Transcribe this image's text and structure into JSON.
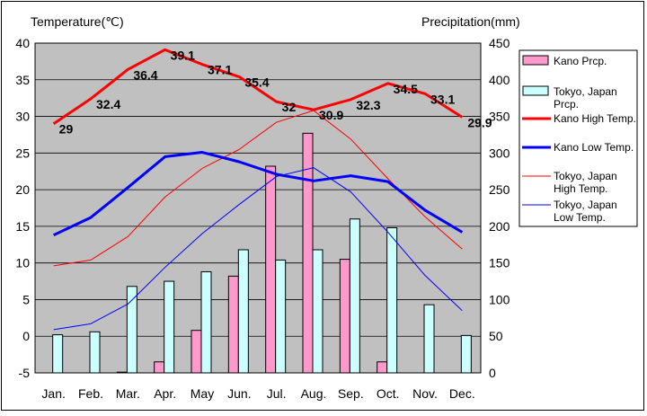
{
  "chart_data": {
    "type": "bar",
    "left_axis_title": "Temperature(℃)",
    "right_axis_title": "Precipitation(mm)",
    "categories": [
      "Jan.",
      "Feb.",
      "Mar.",
      "Apr.",
      "May",
      "Jun.",
      "Jul.",
      "Aug.",
      "Sep.",
      "Oct.",
      "Nov.",
      "Dec."
    ],
    "y_left": {
      "range": [
        -5,
        40
      ],
      "ticks": [
        -5,
        0,
        5,
        10,
        15,
        20,
        25,
        30,
        35,
        40
      ]
    },
    "y_right": {
      "range": [
        0,
        450
      ],
      "ticks": [
        0,
        50,
        100,
        150,
        200,
        250,
        300,
        350,
        400,
        450
      ]
    },
    "grid": "horizontal",
    "plot_background": "#c0c0c0",
    "legend_position": "right",
    "bar_series": [
      {
        "name": "Kano Prcp.",
        "color": "#ff99cc",
        "axis": "right",
        "values": [
          0,
          0,
          1,
          15,
          58,
          132,
          282,
          327,
          155,
          15,
          0,
          0
        ]
      },
      {
        "name": "Tokyo, Japan Prcp.",
        "color": "#ccffff",
        "axis": "right",
        "values": [
          52,
          56,
          118,
          125,
          138,
          168,
          154,
          168,
          210,
          198,
          93,
          51
        ]
      }
    ],
    "line_series": [
      {
        "name": "Kano High Temp.",
        "color": "#ff0000",
        "width": "thick",
        "axis": "left",
        "values": [
          29,
          32.4,
          36.4,
          39.1,
          37.1,
          35.4,
          32,
          30.9,
          32.3,
          34.5,
          33.1,
          29.9
        ],
        "labels": [
          "29",
          "32.4",
          "36.4",
          "39.1",
          "37.1",
          "35.4",
          "32",
          "30.9",
          "32.3",
          "34.5",
          "33.1",
          "29.9"
        ]
      },
      {
        "name": "Kano Low Temp.",
        "color": "#0000ff",
        "width": "thick",
        "axis": "left",
        "values": [
          13.8,
          16.2,
          20.3,
          24.5,
          25.1,
          23.8,
          22.1,
          21.2,
          21.9,
          21.1,
          17.2,
          14.2
        ]
      },
      {
        "name": "Tokyo, Japan High Temp.",
        "color": "#ff0000",
        "width": "thin",
        "axis": "left",
        "values": [
          9.6,
          10.4,
          13.6,
          19.0,
          22.9,
          25.5,
          29.2,
          30.8,
          26.9,
          21.5,
          16.3,
          11.9
        ]
      },
      {
        "name": "Tokyo, Japan Low Temp.",
        "color": "#0000ff",
        "width": "thin",
        "axis": "left",
        "values": [
          0.9,
          1.7,
          4.4,
          9.4,
          14.0,
          18.0,
          21.8,
          23.0,
          19.7,
          14.2,
          8.3,
          3.5
        ]
      }
    ],
    "legend": [
      {
        "label": "Kano Prcp.",
        "kind": "box",
        "color": "#ff99cc"
      },
      {
        "label": "Tokyo, Japan Prcp.",
        "kind": "box",
        "color": "#ccffff"
      },
      {
        "label": "Kano High Temp.",
        "kind": "line",
        "color": "#ff0000",
        "width": "thick"
      },
      {
        "label": "Kano Low Temp.",
        "kind": "line",
        "color": "#0000ff",
        "width": "thick"
      },
      {
        "label": "Tokyo, Japan High Temp.",
        "kind": "line",
        "color": "#ff0000",
        "width": "thin"
      },
      {
        "label": "Tokyo, Japan Low Temp.",
        "kind": "line",
        "color": "#0000ff",
        "width": "thin"
      }
    ]
  }
}
